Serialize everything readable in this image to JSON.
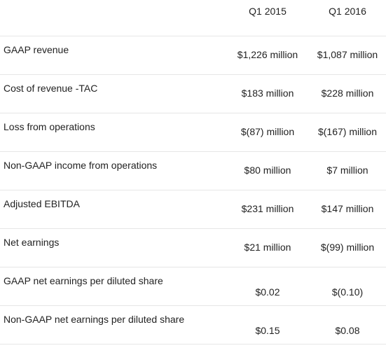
{
  "columns": [
    "Q1 2015",
    "Q1 2016"
  ],
  "rows": [
    {
      "label": "GAAP revenue",
      "q1_2015": "$1,226 million",
      "q1_2016": "$1,087 million"
    },
    {
      "label": "Cost of revenue -TAC",
      "q1_2015": "$183 million",
      "q1_2016": "$228 million"
    },
    {
      "label": "Loss from operations",
      "q1_2015": "$(87) million",
      "q1_2016": "$(167) million"
    },
    {
      "label": "Non-GAAP income from operations",
      "q1_2015": "$80 million",
      "q1_2016": "$7 million"
    },
    {
      "label": "Adjusted EBITDA",
      "q1_2015": "$231 million",
      "q1_2016": "$147 million"
    },
    {
      "label": "Net earnings",
      "q1_2015": "$21 million",
      "q1_2016": "$(99) million"
    },
    {
      "label": "GAAP net earnings per diluted share",
      "q1_2015": "$0.02",
      "q1_2016": "$(0.10)"
    },
    {
      "label": "Non-GAAP net earnings per diluted share",
      "q1_2015": "$0.15",
      "q1_2016": "$0.08"
    }
  ]
}
